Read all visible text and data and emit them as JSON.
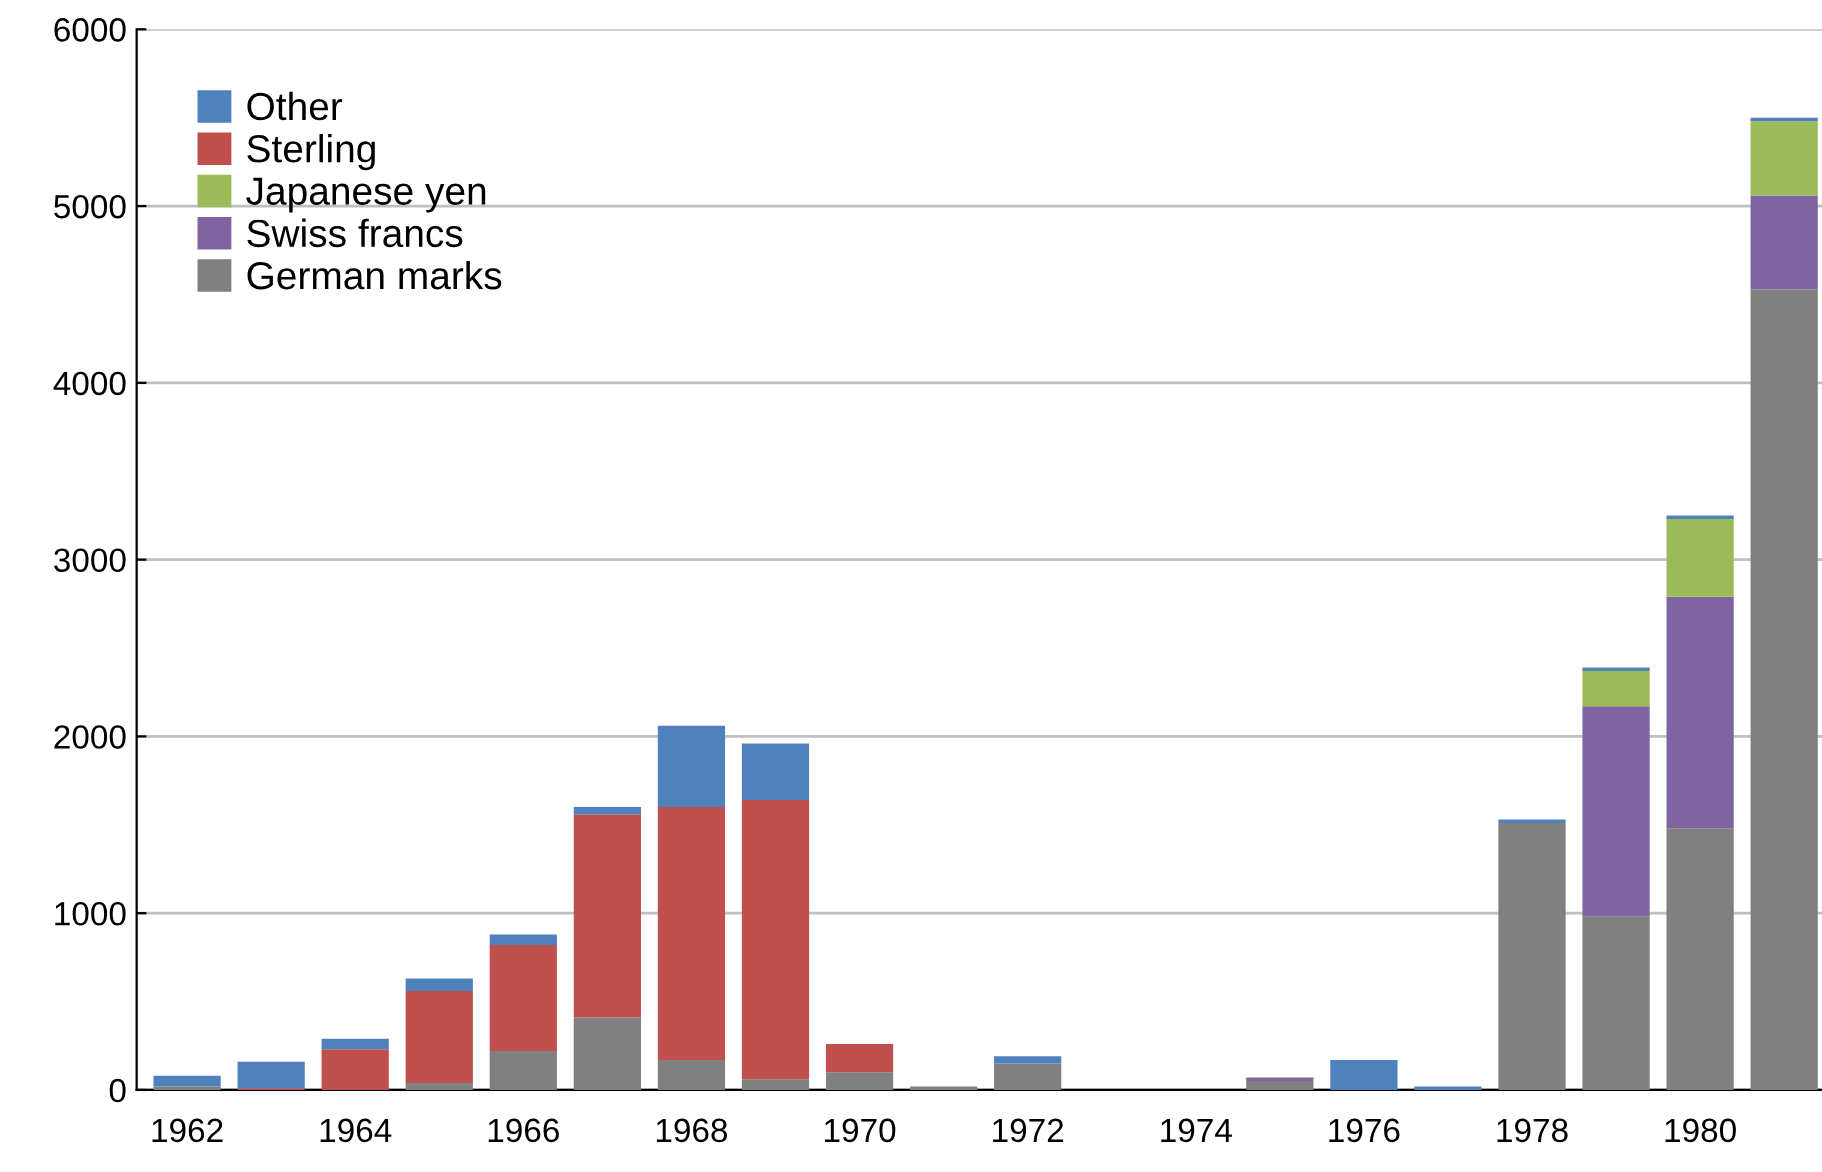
{
  "chart_data": {
    "type": "bar",
    "stacked": true,
    "categories": [
      "1962",
      null,
      "1964",
      null,
      "1966",
      null,
      "1968",
      null,
      "1970",
      null,
      "1972",
      null,
      "1974",
      null,
      "1976",
      null,
      "1978",
      null,
      "1980",
      null
    ],
    "series": [
      {
        "name": "German marks",
        "color": "#808080",
        "values": [
          20,
          null,
          null,
          40,
          220,
          410,
          170,
          60,
          100,
          20,
          150,
          null,
          null,
          50,
          null,
          null,
          1510,
          980,
          1480,
          4530
        ]
      },
      {
        "name": "Swiss francs",
        "color": "#8064a2",
        "values": [
          null,
          null,
          null,
          null,
          null,
          null,
          null,
          null,
          null,
          null,
          null,
          null,
          null,
          20,
          null,
          null,
          null,
          1190,
          1310,
          530
        ]
      },
      {
        "name": "Japanese yen",
        "color": "#9bbb59",
        "values": [
          null,
          null,
          null,
          null,
          null,
          null,
          null,
          null,
          null,
          null,
          null,
          null,
          null,
          null,
          null,
          null,
          null,
          200,
          440,
          420
        ]
      },
      {
        "name": "Sterling",
        "color": "#c0504d",
        "values": [
          null,
          10,
          230,
          520,
          600,
          1150,
          1430,
          1580,
          160,
          null,
          null,
          null,
          null,
          null,
          null,
          null,
          null,
          null,
          null,
          null
        ]
      },
      {
        "name": "Other",
        "color": "#4f81bd",
        "values": [
          60,
          150,
          60,
          70,
          60,
          40,
          460,
          320,
          null,
          null,
          40,
          null,
          null,
          null,
          170,
          20,
          20,
          20,
          20,
          20
        ]
      }
    ],
    "ylim": [
      0,
      6000
    ],
    "yticks": [
      0,
      1000,
      2000,
      3000,
      4000,
      5000,
      6000
    ],
    "grid": "y",
    "legend": "top left"
  }
}
